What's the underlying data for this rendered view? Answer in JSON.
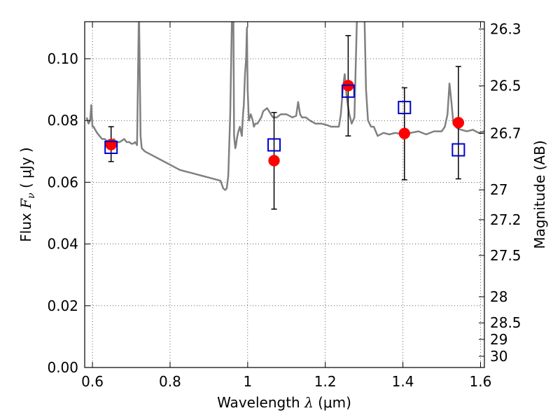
{
  "chart_data": {
    "type": "scatter",
    "xlabel": {
      "prefix": "Wavelength",
      "symbol": "λ",
      "unit": "(μm)"
    },
    "ylabel": {
      "prefix": "Flux",
      "symbol": "F",
      "subscript": "ν",
      "unit": "( μJy )"
    },
    "y2label": "Magnitude (AB)",
    "xlim": [
      0.58,
      1.61
    ],
    "ylim": [
      0.0,
      0.112
    ],
    "x_ticks": [
      0.6,
      0.8,
      1.0,
      1.2,
      1.4,
      1.6
    ],
    "x_tick_labels": [
      "0.6",
      "0.8",
      "1",
      "1.2",
      "1.4",
      "1.6"
    ],
    "y_ticks": [
      0.0,
      0.02,
      0.04,
      0.06,
      0.08,
      0.1
    ],
    "y_tick_labels": [
      "0.00",
      "0.02",
      "0.04",
      "0.06",
      "0.08",
      "0.10"
    ],
    "mag_ticks": [
      26.3,
      26.5,
      26.7,
      27,
      27.2,
      27.5,
      28,
      28.5,
      29,
      30
    ],
    "mag_tick_labels": [
      "26.3",
      "26.5",
      "26.7",
      "27",
      "27.2",
      "27.5",
      "28",
      "28.5",
      "29",
      "30"
    ],
    "grid": true,
    "series": [
      {
        "kind": "line",
        "color": "#808080",
        "x": [
          0.585,
          0.59,
          0.594,
          0.597,
          0.6,
          0.603,
          0.607,
          0.612,
          0.618,
          0.625,
          0.632,
          0.64,
          0.648,
          0.655,
          0.662,
          0.67,
          0.676,
          0.682,
          0.688,
          0.695,
          0.7,
          0.705,
          0.71,
          0.715,
          0.717,
          0.719,
          0.72,
          0.722,
          0.724,
          0.727,
          0.735,
          0.75,
          0.765,
          0.78,
          0.795,
          0.81,
          0.825,
          0.84,
          0.855,
          0.87,
          0.885,
          0.9,
          0.915,
          0.93,
          0.937,
          0.942,
          0.946,
          0.95,
          0.955,
          0.96,
          0.963,
          0.965,
          0.968,
          0.97,
          0.972,
          0.975,
          0.98,
          0.985,
          0.988,
          0.99,
          0.993,
          0.996,
          0.998,
          1.0,
          1.003,
          1.008,
          1.013,
          1.016,
          1.02,
          1.025,
          1.03,
          1.035,
          1.04,
          1.05,
          1.06,
          1.065,
          1.07,
          1.075,
          1.085,
          1.1,
          1.115,
          1.125,
          1.13,
          1.135,
          1.14,
          1.15,
          1.16,
          1.175,
          1.19,
          1.205,
          1.215,
          1.225,
          1.235,
          1.24,
          1.245,
          1.25,
          1.255,
          1.258,
          1.262,
          1.268,
          1.275,
          1.283,
          1.29,
          1.295,
          1.3,
          1.305,
          1.31,
          1.318,
          1.325,
          1.335,
          1.35,
          1.365,
          1.38,
          1.4,
          1.42,
          1.44,
          1.46,
          1.48,
          1.5,
          1.508,
          1.515,
          1.52,
          1.525,
          1.53,
          1.54,
          1.55,
          1.565,
          1.58,
          1.595,
          1.61
        ],
        "y": [
          0.081,
          0.079,
          0.08,
          0.085,
          0.078,
          0.078,
          0.077,
          0.076,
          0.075,
          0.074,
          0.074,
          0.073,
          0.073,
          0.074,
          0.073,
          0.073,
          0.0735,
          0.074,
          0.073,
          0.073,
          0.0725,
          0.0725,
          0.073,
          0.072,
          0.09,
          0.11,
          0.115,
          0.095,
          0.075,
          0.071,
          0.07,
          0.069,
          0.068,
          0.067,
          0.066,
          0.065,
          0.064,
          0.0635,
          0.063,
          0.0625,
          0.062,
          0.0615,
          0.061,
          0.0605,
          0.058,
          0.0575,
          0.058,
          0.062,
          0.082,
          0.118,
          0.118,
          0.075,
          0.071,
          0.072,
          0.074,
          0.076,
          0.078,
          0.075,
          0.082,
          0.085,
          0.095,
          0.1,
          0.11,
          0.09,
          0.08,
          0.082,
          0.08,
          0.078,
          0.079,
          0.079,
          0.08,
          0.081,
          0.083,
          0.084,
          0.082,
          0.081,
          0.081,
          0.081,
          0.082,
          0.082,
          0.081,
          0.0815,
          0.086,
          0.082,
          0.081,
          0.081,
          0.08,
          0.079,
          0.079,
          0.0785,
          0.078,
          0.078,
          0.078,
          0.082,
          0.09,
          0.095,
          0.088,
          0.085,
          0.082,
          0.079,
          0.081,
          0.12,
          0.15,
          0.14,
          0.12,
          0.09,
          0.08,
          0.078,
          0.078,
          0.075,
          0.076,
          0.0755,
          0.076,
          0.0755,
          0.076,
          0.0765,
          0.0755,
          0.0765,
          0.0765,
          0.078,
          0.082,
          0.092,
          0.086,
          0.079,
          0.0775,
          0.077,
          0.0765,
          0.077,
          0.076,
          0.0765
        ]
      },
      {
        "kind": "observed",
        "color": "#ff0000",
        "x": [
          0.648,
          1.068,
          1.259,
          1.404,
          1.543
        ],
        "y": [
          0.0722,
          0.067,
          0.0913,
          0.0758,
          0.0793
        ],
        "yerr_low": [
          0.0055,
          0.0157,
          0.0163,
          0.015,
          0.0182
        ],
        "yerr_high": [
          0.0058,
          0.0156,
          0.0162,
          0.0148,
          0.0182
        ]
      },
      {
        "kind": "model",
        "color": "#0000cc",
        "x": [
          0.648,
          1.068,
          1.259,
          1.404,
          1.543
        ],
        "y": [
          0.0713,
          0.0721,
          0.0895,
          0.0842,
          0.0705
        ]
      }
    ]
  }
}
